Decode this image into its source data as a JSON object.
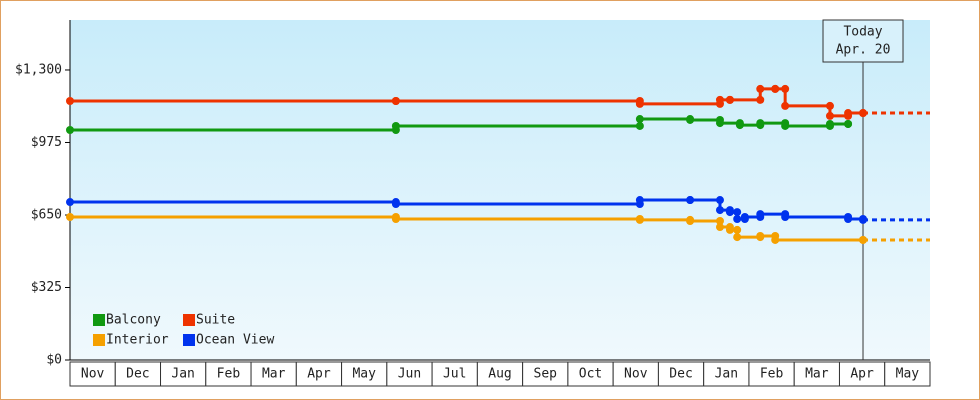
{
  "chart_data": {
    "type": "step",
    "categories": [
      "Nov",
      "Dec",
      "Jan",
      "Feb",
      "Mar",
      "Apr",
      "May",
      "Jun",
      "Jul",
      "Aug",
      "Sep",
      "Oct",
      "Nov",
      "Dec",
      "Jan",
      "Feb",
      "Mar",
      "Apr",
      "May"
    ],
    "xlim": [
      0,
      19
    ],
    "ylim": [
      0,
      1524
    ],
    "yticks": [
      {
        "value": 0,
        "label": "$0"
      },
      {
        "value": 325,
        "label": "$325"
      },
      {
        "value": 650,
        "label": "$650"
      },
      {
        "value": 975,
        "label": "$975"
      },
      {
        "value": 1300,
        "label": "$1,300"
      }
    ],
    "today": {
      "label": "Today",
      "date": "Apr. 20",
      "x": 17.52
    },
    "series": [
      {
        "name": "Balcony",
        "color": "#119911",
        "x": [
          0,
          7.2,
          12.59,
          13.7,
          14.36,
          14.8,
          15.25,
          15.8,
          16.79,
          17.19
        ],
        "values": [
          1031,
          1049,
          1080,
          1076,
          1062,
          1053,
          1062,
          1049,
          1058,
          1058
        ]
      },
      {
        "name": "Suite",
        "color": "#ee3300",
        "x": [
          0,
          7.2,
          12.59,
          14.36,
          14.58,
          15.25,
          15.58,
          15.8,
          16.79,
          17.19,
          17.52
        ],
        "values": [
          1161,
          1161,
          1148,
          1166,
          1166,
          1215,
          1215,
          1139,
          1094,
          1107,
          1107
        ]
      },
      {
        "name": "Interior",
        "color": "#f5a000",
        "x": [
          0,
          7.2,
          12.59,
          13.7,
          14.36,
          14.58,
          14.74,
          15.25,
          15.58,
          17.52
        ],
        "values": [
          641,
          632,
          628,
          623,
          596,
          583,
          551,
          556,
          538,
          538
        ]
      },
      {
        "name": "Ocean View",
        "color": "#0033ee",
        "x": [
          0,
          7.2,
          12.59,
          13.7,
          14.36,
          14.58,
          14.74,
          14.91,
          15.25,
          15.8,
          17.19,
          17.52
        ],
        "values": [
          708,
          699,
          717,
          717,
          672,
          663,
          632,
          641,
          654,
          641,
          632,
          628
        ]
      }
    ]
  }
}
